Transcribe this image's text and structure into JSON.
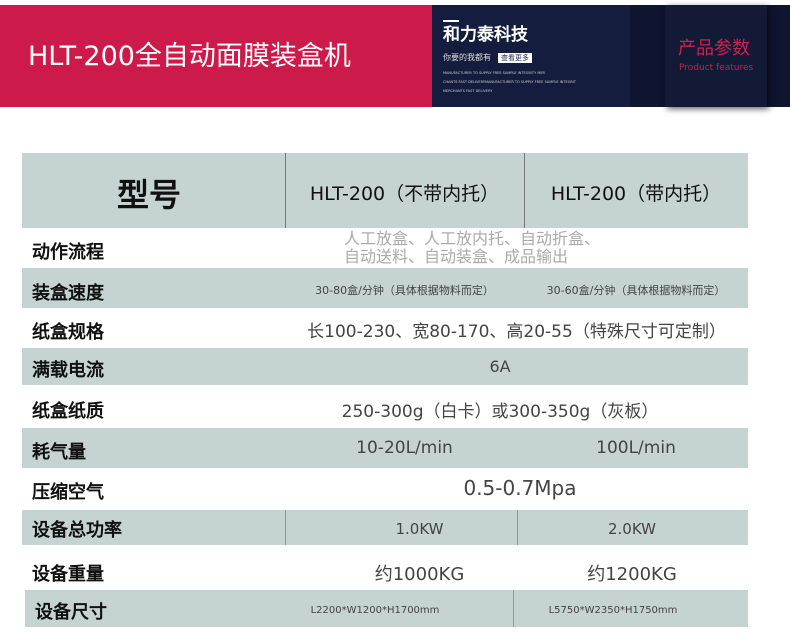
{
  "banner": {
    "title": "HLT-200全自动面膜装盒机",
    "brand": "和力泰科技",
    "slogan": "你要的我都有",
    "more_button": "查看更多",
    "english_lines": [
      "MANUFACTURER TO SUPPLY FREE SAMPLE INTEGRITY MER",
      "CHANTS FAST DELIVERYMANUFACTURER TO SUPPLY FREE SAMPLE INTEGRIT",
      "MERCHANTS FAST DELIVERY"
    ],
    "section_cn": "产品参数",
    "section_en": "Product features",
    "colors": {
      "red": "#cc1b4a",
      "navy": "#141d3e",
      "row_gray": "#c5d3d3"
    }
  },
  "table": {
    "header": {
      "label": "型号",
      "col1": "HLT-200（不带内托）",
      "col2": "HLT-200（带内托）"
    },
    "rows": [
      {
        "label": "动作流程",
        "value": "人工放盒、人工放内托、自动折盒、",
        "value2": "自动送料、自动装盒、成品输出"
      },
      {
        "label": "装盒速度",
        "col1": "30-80盒/分钟（具体根据物料而定）",
        "col2": "30-60盒/分钟（具体根据物料而定）"
      },
      {
        "label": "纸盒规格",
        "value": "长100-230、宽80-170、高20-55（特殊尺寸可定制）"
      },
      {
        "label": "满载电流",
        "value": "6A"
      },
      {
        "label": "纸盒纸质",
        "value": "250-300g（白卡）或300-350g（灰板）"
      },
      {
        "label": "耗气量",
        "col1": "10-20L/min",
        "col2": "100L/min"
      },
      {
        "label": "压缩空气",
        "value": "0.5-0.7Mpa"
      },
      {
        "label": "设备总功率",
        "col1": "1.0KW",
        "col2": "2.0KW"
      },
      {
        "label": "设备重量",
        "col1": "约1000KG",
        "col2": "约1200KG"
      },
      {
        "label": "设备尺寸",
        "col1": "L2200*W1200*H1700mm",
        "col2": "L5750*W2350*H1750mm"
      }
    ]
  }
}
